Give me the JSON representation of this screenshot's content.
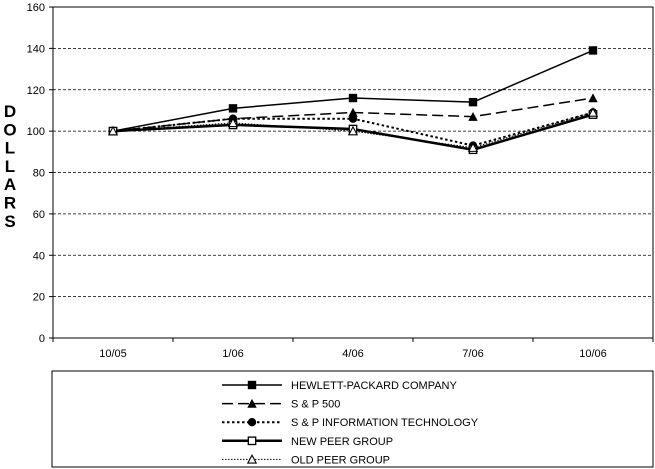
{
  "chart_data": {
    "type": "line",
    "title": "",
    "xlabel": "",
    "ylabel": "DOLLARS",
    "categories": [
      "10/05",
      "1/06",
      "4/06",
      "7/06",
      "10/06"
    ],
    "ylim": [
      0,
      160
    ],
    "yticks": [
      "0",
      "20",
      "40",
      "60",
      "80",
      "100",
      "120",
      "140",
      "160"
    ],
    "grid": "horizontal dashed",
    "legend_placement": "bottom",
    "series": [
      {
        "name": "HEWLETT-PACKARD COMPANY",
        "values": [
          100,
          111,
          116,
          114,
          139
        ],
        "dash": "solid",
        "marker": "square-filled",
        "width": 1.5,
        "color": "#000000"
      },
      {
        "name": "S & P 500",
        "values": [
          100,
          106,
          109,
          107,
          116
        ],
        "dash": "long-dash",
        "marker": "triangle-filled",
        "width": 1.5,
        "color": "#000000"
      },
      {
        "name": "S & P INFORMATION TECHNOLOGY",
        "values": [
          100,
          106,
          106,
          93,
          109
        ],
        "dash": "dotted",
        "marker": "circle-filled",
        "width": 2,
        "color": "#000000"
      },
      {
        "name": "NEW PEER GROUP",
        "values": [
          100,
          103,
          101,
          91,
          108
        ],
        "dash": "solid",
        "marker": "square-open",
        "width": 2.5,
        "color": "#000000"
      },
      {
        "name": "OLD PEER GROUP",
        "values": [
          100,
          104,
          100,
          92,
          109
        ],
        "dash": "fine-dotted",
        "marker": "triangle-open",
        "width": 1,
        "color": "#000000"
      }
    ]
  }
}
